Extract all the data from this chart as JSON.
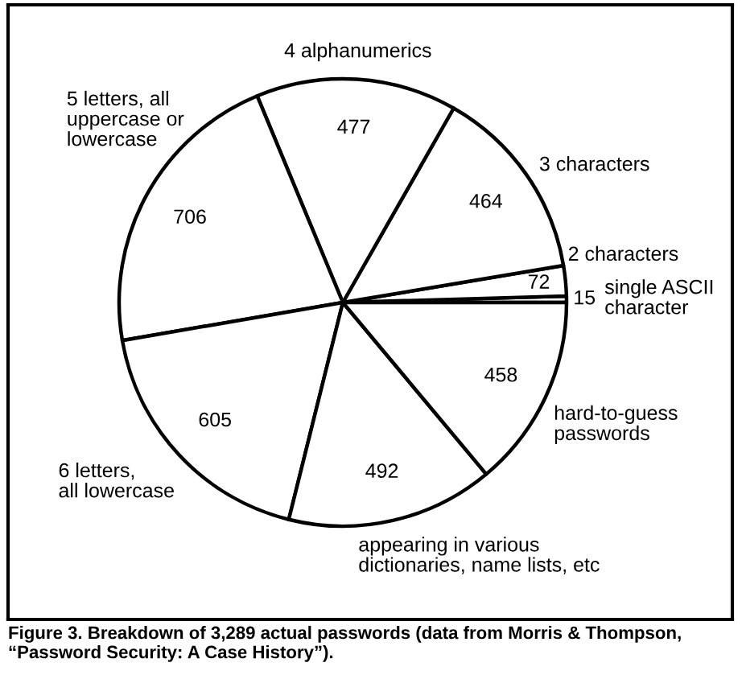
{
  "chart_data": {
    "type": "pie",
    "categories": [
      "single ASCII\ncharacter",
      "2 characters",
      "3 characters",
      "4 alphanumerics",
      "5 letters, all\nuppercase or\nlowercase",
      "6 letters,\nall lowercase",
      "appearing in various\ndictionaries, name lists, etc",
      "hard-to-guess\npasswords"
    ],
    "values": [
      15,
      72,
      464,
      477,
      706,
      605,
      492,
      458
    ],
    "colors": [
      "#ffffff",
      "#ffffff",
      "#ffffff",
      "#ffffff",
      "#ffffff",
      "#ffffff",
      "#ffffff",
      "#ffffff"
    ],
    "data_labels": true,
    "annotations": [
      "Figure 3. Breakdown of 3,289 actual passwords (data from Morris & Thompson, “Password Security: A Case History”)."
    ]
  }
}
